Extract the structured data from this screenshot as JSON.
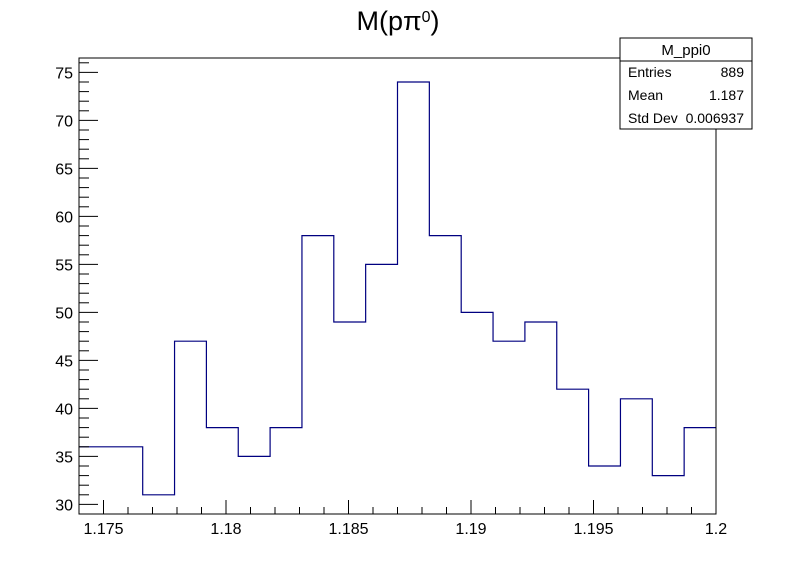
{
  "chart_data": {
    "type": "histogram",
    "title": "M(pπ",
    "title_superscript": "0",
    "title_close": ")",
    "xlim": [
      1.174,
      1.2
    ],
    "ylim": [
      29,
      76.5
    ],
    "x_ticks": [
      1.175,
      1.18,
      1.185,
      1.19,
      1.195,
      1.2
    ],
    "x_tick_labels": [
      "1.175",
      "1.18",
      "1.185",
      "1.19",
      "1.195",
      "1.2"
    ],
    "y_ticks": [
      30,
      35,
      40,
      45,
      50,
      55,
      60,
      65,
      70,
      75
    ],
    "y_tick_labels": [
      "30",
      "35",
      "40",
      "45",
      "50",
      "55",
      "60",
      "65",
      "70",
      "75"
    ],
    "bin_edges": [
      1.174,
      1.1753,
      1.1766,
      1.1779,
      1.1792,
      1.1805,
      1.1818,
      1.1831,
      1.1844,
      1.1857,
      1.187,
      1.1883,
      1.1896,
      1.1909,
      1.1922,
      1.1935,
      1.1948,
      1.1961,
      1.1974,
      1.1987,
      1.2
    ],
    "values": [
      36,
      36,
      31,
      47,
      38,
      35,
      38,
      58,
      49,
      55,
      74,
      58,
      50,
      47,
      49,
      42,
      34,
      41,
      33,
      38
    ],
    "line_color": "#000080",
    "grid": false,
    "legend": "none",
    "stats_box": {
      "title": "M_ppi0",
      "rows": [
        {
          "label": "Entries",
          "value": "889"
        },
        {
          "label": "Mean",
          "value": "1.187"
        },
        {
          "label": "Std Dev",
          "value": "0.006937"
        }
      ]
    }
  }
}
